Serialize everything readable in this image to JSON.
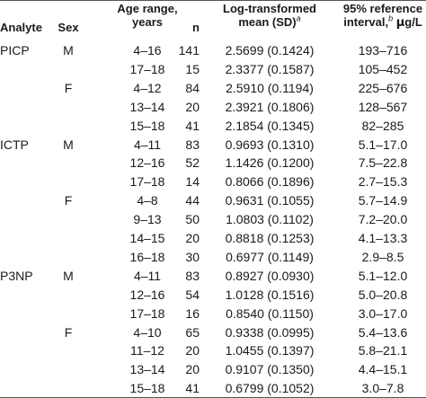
{
  "header": {
    "analyte": "Analyte",
    "sex": "Sex",
    "age_line1": "Age range,",
    "age_line2": "years",
    "n": "n",
    "mean_line1": "Log-transformed",
    "mean_line2": "mean (SD)",
    "mean_footnote": "a",
    "ref_line1": "95% reference",
    "ref_line2": "interval,",
    "ref_footnote": "b",
    "ref_unit_mu": "μ",
    "ref_unit_rest": "g/L"
  },
  "rows": [
    {
      "analyte": "PICP",
      "sex": "M",
      "age": "4–16",
      "n": "141",
      "mean": "2.5699 (0.1424)",
      "ref": "193–716"
    },
    {
      "analyte": "",
      "sex": "",
      "age": "17–18",
      "n": "15",
      "mean": "2.3377 (0.1587)",
      "ref": "105–452"
    },
    {
      "analyte": "",
      "sex": "F",
      "age": "4–12",
      "n": "84",
      "mean": "2.5910 (0.1194)",
      "ref": "225–676"
    },
    {
      "analyte": "",
      "sex": "",
      "age": "13–14",
      "n": "20",
      "mean": "2.3921 (0.1806)",
      "ref": "128–567"
    },
    {
      "analyte": "",
      "sex": "",
      "age": "15–18",
      "n": "41",
      "mean": "2.1854 (0.1345)",
      "ref": "82–285"
    },
    {
      "analyte": "ICTP",
      "sex": "M",
      "age": "4–11",
      "n": "83",
      "mean": "0.9693 (0.1310)",
      "ref": "5.1–17.0"
    },
    {
      "analyte": "",
      "sex": "",
      "age": "12–16",
      "n": "52",
      "mean": "1.1426 (0.1200)",
      "ref": "7.5–22.8"
    },
    {
      "analyte": "",
      "sex": "",
      "age": "17–18",
      "n": "14",
      "mean": "0.8066 (0.1896)",
      "ref": "2.7–15.3"
    },
    {
      "analyte": "",
      "sex": "F",
      "age": "4–8",
      "n": "44",
      "mean": "0.9631 (0.1055)",
      "ref": "5.7–14.9"
    },
    {
      "analyte": "",
      "sex": "",
      "age": "9–13",
      "n": "50",
      "mean": "1.0803 (0.1102)",
      "ref": "7.2–20.0"
    },
    {
      "analyte": "",
      "sex": "",
      "age": "14–15",
      "n": "20",
      "mean": "0.8818 (0.1253)",
      "ref": "4.1–13.3"
    },
    {
      "analyte": "",
      "sex": "",
      "age": "16–18",
      "n": "30",
      "mean": "0.6977 (0.1149)",
      "ref": "2.9–8.5"
    },
    {
      "analyte": "P3NP",
      "sex": "M",
      "age": "4–11",
      "n": "83",
      "mean": "0.8927 (0.0930)",
      "ref": "5.1–12.0"
    },
    {
      "analyte": "",
      "sex": "",
      "age": "12–16",
      "n": "54",
      "mean": "1.0128 (0.1516)",
      "ref": "5.0–20.8"
    },
    {
      "analyte": "",
      "sex": "",
      "age": "17–18",
      "n": "16",
      "mean": "0.8540 (0.1150)",
      "ref": "3.0–17.0"
    },
    {
      "analyte": "",
      "sex": "F",
      "age": "4–10",
      "n": "65",
      "mean": "0.9338 (0.0995)",
      "ref": "5.4–13.6"
    },
    {
      "analyte": "",
      "sex": "",
      "age": "11–12",
      "n": "20",
      "mean": "1.0455 (0.1397)",
      "ref": "5.8–21.1"
    },
    {
      "analyte": "",
      "sex": "",
      "age": "13–14",
      "n": "20",
      "mean": "0.9107 (0.1350)",
      "ref": "4.4–15.1"
    },
    {
      "analyte": "",
      "sex": "",
      "age": "15–18",
      "n": "41",
      "mean": "0.6799 (0.1052)",
      "ref": "3.0–7.8"
    }
  ]
}
